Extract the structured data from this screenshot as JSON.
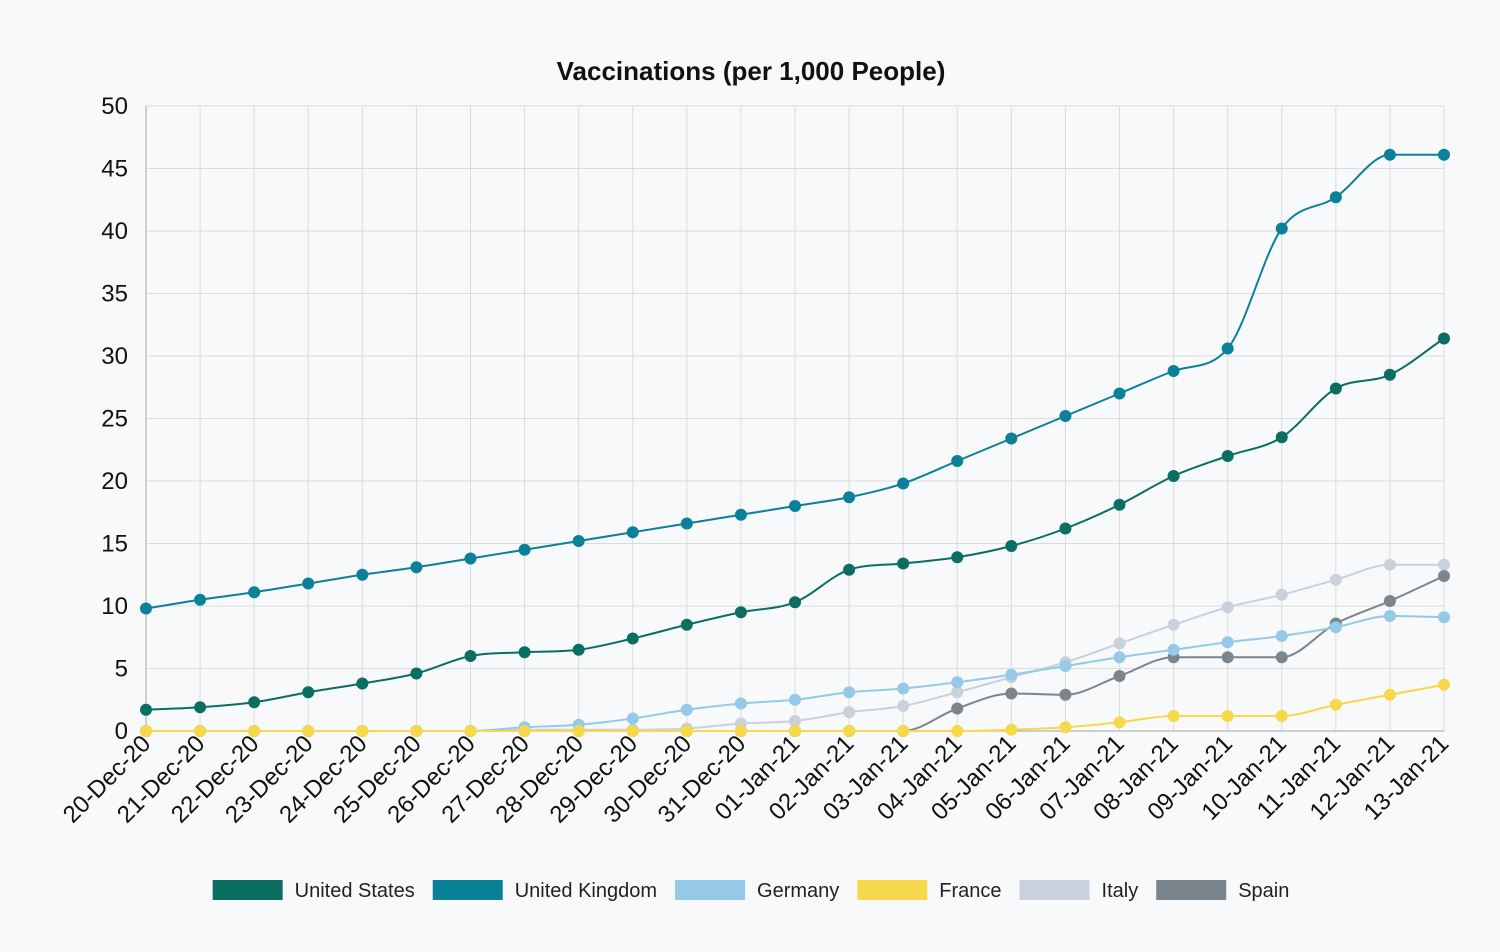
{
  "chart_data": {
    "type": "line",
    "title": "Vaccinations (per 1,000 People)",
    "xlabel": "",
    "ylabel": "",
    "ylim": [
      0,
      50
    ],
    "y_ticks": [
      0,
      5,
      10,
      15,
      20,
      25,
      30,
      35,
      40,
      45,
      50
    ],
    "grid": true,
    "smooth": true,
    "legend_position": "bottom",
    "x": [
      "20-Dec-20",
      "21-Dec-20",
      "22-Dec-20",
      "23-Dec-20",
      "24-Dec-20",
      "25-Dec-20",
      "26-Dec-20",
      "27-Dec-20",
      "28-Dec-20",
      "29-Dec-20",
      "30-Dec-20",
      "31-Dec-20",
      "01-Jan-21",
      "02-Jan-21",
      "03-Jan-21",
      "04-Jan-21",
      "05-Jan-21",
      "06-Jan-21",
      "07-Jan-21",
      "08-Jan-21",
      "09-Jan-21",
      "10-Jan-21",
      "11-Jan-21",
      "12-Jan-21",
      "13-Jan-21"
    ],
    "series": [
      {
        "name": "Italy",
        "color": "#c9d1dd",
        "values": [
          0,
          0,
          0,
          0,
          0,
          0,
          0,
          0.1,
          0.1,
          0.1,
          0.2,
          0.6,
          0.8,
          1.5,
          2.0,
          3.1,
          4.3,
          5.5,
          7.0,
          8.5,
          9.9,
          10.9,
          12.1,
          13.3,
          13.3
        ]
      },
      {
        "name": "Spain",
        "color": "#7a858d",
        "values": [
          0,
          0,
          0,
          0,
          0,
          0,
          0,
          0,
          0,
          0,
          0,
          0,
          0,
          0,
          0,
          1.8,
          3.0,
          2.9,
          4.4,
          5.9,
          5.9,
          5.9,
          8.6,
          10.4,
          12.4
        ]
      },
      {
        "name": "Germany",
        "color": "#94c9e8",
        "values": [
          0,
          0,
          0,
          0,
          0,
          0,
          0,
          0.3,
          0.5,
          1.0,
          1.7,
          2.2,
          2.5,
          3.1,
          3.4,
          3.9,
          4.5,
          5.2,
          5.9,
          6.5,
          7.1,
          7.6,
          8.3,
          9.2,
          9.1
        ]
      },
      {
        "name": "France",
        "color": "#f7d84b",
        "values": [
          0,
          0,
          0,
          0,
          0,
          0,
          0,
          0,
          0,
          0,
          0,
          0,
          0,
          0,
          0,
          0,
          0.1,
          0.3,
          0.7,
          1.2,
          1.2,
          1.2,
          2.1,
          2.9,
          3.7
        ]
      },
      {
        "name": "United States",
        "color": "#0a6e63",
        "values": [
          1.7,
          1.9,
          2.3,
          3.1,
          3.8,
          4.6,
          6.0,
          6.3,
          6.5,
          7.4,
          8.5,
          9.5,
          10.3,
          12.9,
          13.4,
          13.9,
          14.8,
          16.2,
          18.1,
          20.4,
          22.0,
          23.5,
          27.4,
          28.5,
          31.4
        ]
      },
      {
        "name": "United Kingdom",
        "color": "#0b8199",
        "values": [
          9.8,
          10.5,
          11.1,
          11.8,
          12.5,
          13.1,
          13.8,
          14.5,
          15.2,
          15.9,
          16.6,
          17.3,
          18.0,
          18.7,
          19.8,
          21.6,
          23.4,
          25.2,
          27.0,
          28.8,
          30.6,
          40.2,
          42.7,
          46.1,
          46.1
        ]
      }
    ],
    "legend_order": [
      "United States",
      "United Kingdom",
      "Germany",
      "France",
      "Italy",
      "Spain"
    ]
  }
}
